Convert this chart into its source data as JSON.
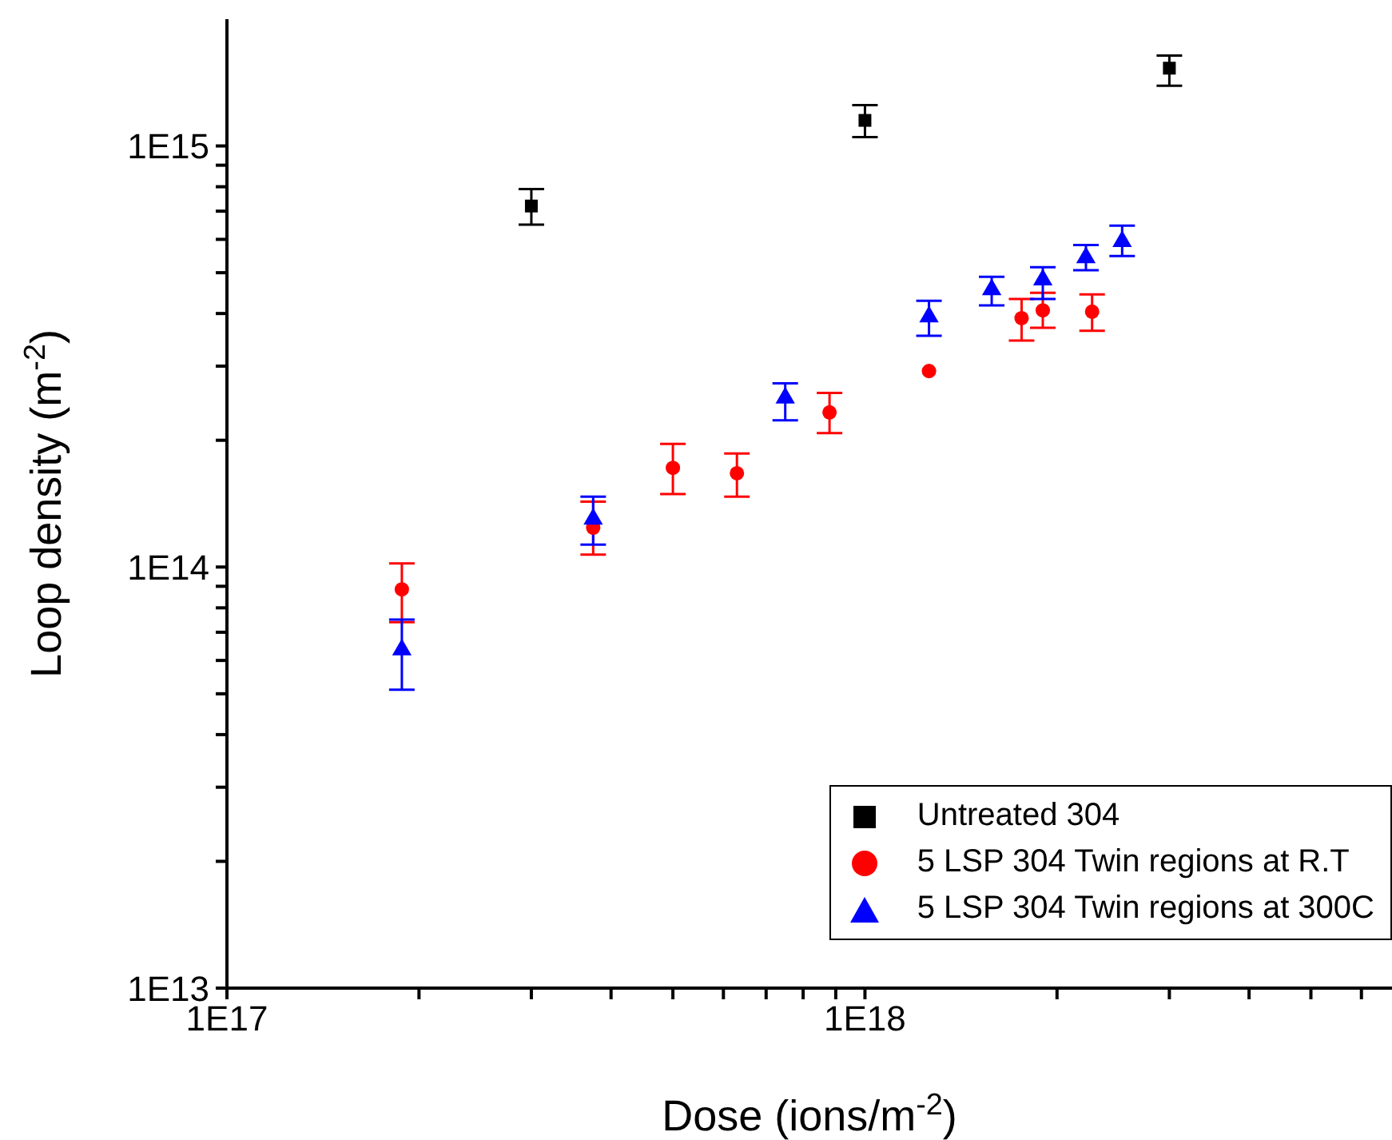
{
  "chart_data": {
    "type": "scatter",
    "xlabel": "Dose (ions/m$^{-2}$)",
    "ylabel": "Loop density (m$^{-2}$)",
    "log": "xy",
    "grid": false,
    "legend": "bottom right",
    "xlim": [
      1e+17,
      6.7e+18
    ],
    "ylim": [
      10000000000000.0,
      2000000000000000.0
    ],
    "xticks": [
      {
        "value": 1e+17,
        "label": "1E17"
      },
      {
        "value": 2e+17,
        "label": null
      },
      {
        "value": 3e+17,
        "label": null
      },
      {
        "value": 4e+17,
        "label": null
      },
      {
        "value": 5e+17,
        "label": null
      },
      {
        "value": 6e+17,
        "label": null
      },
      {
        "value": 7e+17,
        "label": null
      },
      {
        "value": 8e+17,
        "label": null
      },
      {
        "value": 9e+17,
        "label": null
      },
      {
        "value": 1e+18,
        "label": "1E18"
      },
      {
        "value": 2e+18,
        "label": null
      },
      {
        "value": 3e+18,
        "label": null
      },
      {
        "value": 4e+18,
        "label": null
      },
      {
        "value": 5e+18,
        "label": null
      },
      {
        "value": 6e+18,
        "label": null
      }
    ],
    "yticks": [
      {
        "value": 10000000000000.0,
        "label": "1E13"
      },
      {
        "value": 20000000000000.0,
        "label": null
      },
      {
        "value": 30000000000000.0,
        "label": null
      },
      {
        "value": 40000000000000.0,
        "label": null
      },
      {
        "value": 50000000000000.0,
        "label": null
      },
      {
        "value": 60000000000000.0,
        "label": null
      },
      {
        "value": 70000000000000.0,
        "label": null
      },
      {
        "value": 80000000000000.0,
        "label": null
      },
      {
        "value": 90000000000000.0,
        "label": null
      },
      {
        "value": 100000000000000.0,
        "label": "1E14"
      },
      {
        "value": 200000000000000.0,
        "label": null
      },
      {
        "value": 300000000000000.0,
        "label": null
      },
      {
        "value": 400000000000000.0,
        "label": null
      },
      {
        "value": 500000000000000.0,
        "label": null
      },
      {
        "value": 600000000000000.0,
        "label": null
      },
      {
        "value": 700000000000000.0,
        "label": null
      },
      {
        "value": 800000000000000.0,
        "label": null
      },
      {
        "value": 900000000000000.0,
        "label": null
      },
      {
        "value": 1000000000000000.0,
        "label": "1E15"
      }
    ],
    "series": [
      {
        "name": "Untreated 304",
        "color": "#000000",
        "marker": "square",
        "x": [
          3e+17,
          1e+18,
          3e+18
        ],
        "values": [
          720000000000000.0,
          1150000000000000.0,
          1530000000000000.0
        ],
        "errors": [
          [
            650000000000000.0,
            790000000000000.0
          ],
          [
            1050000000000000.0,
            1250000000000000.0
          ],
          [
            1390000000000000.0,
            1640000000000000.0
          ]
        ]
      },
      {
        "name": "5 LSP 304 Twin regions at R.T",
        "color": "#ff0000",
        "marker": "circle",
        "x": [
          1.88e+17,
          3.75e+17,
          5e+17,
          6.3e+17,
          8.8e+17,
          1.26e+18,
          1.76e+18,
          1.9e+18,
          2.27e+18
        ],
        "values": [
          88500000000000.0,
          124000000000000.0,
          172000000000000.0,
          167000000000000.0,
          233000000000000.0,
          292000000000000.0,
          390000000000000.0,
          407000000000000.0,
          404000000000000.0
        ],
        "errors": [
          [
            74000000000000.0,
            102000000000000.0
          ],
          [
            107000000000000.0,
            143000000000000.0
          ],
          [
            149000000000000.0,
            196000000000000.0
          ],
          [
            147000000000000.0,
            186000000000000.0
          ],
          [
            208000000000000.0,
            259000000000000.0
          ],
          null,
          [
            345000000000000.0,
            433000000000000.0
          ],
          [
            370000000000000.0,
            448000000000000.0
          ],
          [
            364000000000000.0,
            444000000000000.0
          ]
        ]
      },
      {
        "name": "5 LSP 304 Twin regions at 300C",
        "color": "#0000ff",
        "marker": "triangle",
        "x": [
          1.88e+17,
          3.75e+17,
          7.5e+17,
          1.26e+18,
          1.58e+18,
          1.9e+18,
          2.22e+18,
          2.53e+18
        ],
        "values": [
          63600000000000.0,
          130000000000000.0,
          252000000000000.0,
          393000000000000.0,
          456000000000000.0,
          481000000000000.0,
          543000000000000.0,
          593000000000000.0
        ],
        "errors": [
          [
            51100000000000.0,
            75000000000000.0
          ],
          [
            113000000000000.0,
            147000000000000.0
          ],
          [
            223000000000000.0,
            273000000000000.0
          ],
          [
            354000000000000.0,
            429000000000000.0
          ],
          [
            418000000000000.0,
            489000000000000.0
          ],
          [
            433000000000000.0,
            515000000000000.0
          ],
          [
            507000000000000.0,
            582000000000000.0
          ],
          [
            548000000000000.0,
            647000000000000.0
          ]
        ]
      }
    ]
  }
}
